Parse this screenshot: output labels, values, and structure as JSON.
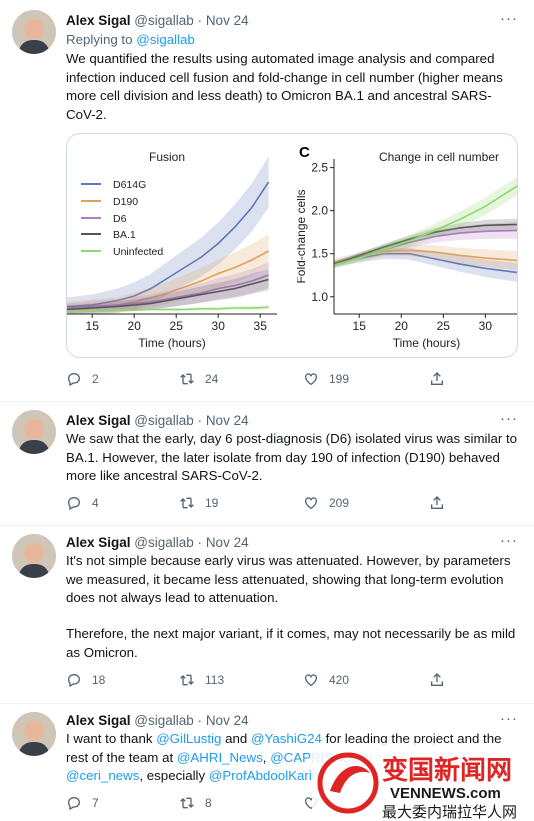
{
  "tweets": [
    {
      "name": "Alex Sigal",
      "handle": "@sigallab",
      "separator": "·",
      "date": "Nov 24",
      "replying_prefix": "Replying to ",
      "replying_handle": "@sigallab",
      "text": "We quantified the results using automated image analysis and compared infection induced cell fusion and fold-change in cell number (higher means more cell division and less death) to Omicron BA.1 and ancestral SARS-CoV-2.",
      "replies": "2",
      "retweets": "24",
      "likes": "199"
    },
    {
      "name": "Alex Sigal",
      "handle": "@sigallab",
      "separator": "·",
      "date": "Nov 24",
      "text": "We saw that the early, day 6 post-diagnosis (D6) isolated virus was similar to BA.1. However, the later isolate from day 190 of infection (D190) behaved more like ancestral SARS-CoV-2.",
      "replies": "4",
      "retweets": "19",
      "likes": "209"
    },
    {
      "name": "Alex Sigal",
      "handle": "@sigallab",
      "separator": "·",
      "date": "Nov 24",
      "text_p1": "It's not simple because early virus was attenuated. However, by parameters we measured, it became less attenuated, showing that long-term evolution does not always lead to attenuation.",
      "text_p2": "Therefore, the next major variant, if it comes, may not necessarily be as mild as Omicron.",
      "replies": "18",
      "retweets": "113",
      "likes": "420"
    },
    {
      "name": "Alex Sigal",
      "handle": "@sigallab",
      "separator": "·",
      "date": "Nov 24",
      "t_a": "I want to thank ",
      "m1": "@GilLustig",
      "t_b": " and ",
      "m2": "@YashiG24",
      "t_c": " for leading the project and the rest of the team at ",
      "m3": "@AHRI_News",
      "t_d": ", ",
      "m4": "@CAPRISAOffici",
      "t_e": " ",
      "m5": "@ceri_news",
      "t_f": ", especially ",
      "m6": "@ProfAbdoolKarim",
      "replies": "7",
      "retweets": "8",
      "likes": ""
    }
  ],
  "colors": {
    "D614G": "#5f78b8",
    "D190": "#e0a05a",
    "D6": "#b07cc6",
    "BA.1": "#555555",
    "Uninfected": "#8fd86b",
    "link": "#1d9bf0",
    "watermark_red": "#e02424"
  },
  "watermark": {
    "cn_name": "变国新闻网",
    "domain": "VENNEWS.com",
    "slogan": "最大委内瑞拉华人网"
  },
  "chart_data": [
    {
      "type": "line",
      "title": "Fusion",
      "xlabel": "Time (hours)",
      "ylabel": "",
      "x_ticks": [
        15,
        20,
        25,
        30,
        35
      ],
      "xlim": [
        12,
        37
      ],
      "ylim": [
        0,
        1
      ],
      "y_ticks_visible": false,
      "legend": "top-left",
      "series": [
        {
          "name": "D614G",
          "x": [
            12,
            15,
            18,
            20,
            22,
            24,
            26,
            28,
            30,
            32,
            34,
            36
          ],
          "values": [
            0.05,
            0.06,
            0.09,
            0.12,
            0.17,
            0.24,
            0.31,
            0.38,
            0.47,
            0.58,
            0.71,
            0.88
          ]
        },
        {
          "name": "D190",
          "x": [
            12,
            15,
            18,
            20,
            22,
            24,
            26,
            28,
            30,
            32,
            34,
            36
          ],
          "values": [
            0.04,
            0.05,
            0.06,
            0.08,
            0.11,
            0.14,
            0.18,
            0.22,
            0.27,
            0.31,
            0.36,
            0.42
          ]
        },
        {
          "name": "D6",
          "x": [
            12,
            15,
            18,
            20,
            22,
            24,
            26,
            28,
            30,
            32,
            34,
            36
          ],
          "values": [
            0.04,
            0.05,
            0.06,
            0.07,
            0.08,
            0.1,
            0.12,
            0.14,
            0.17,
            0.19,
            0.22,
            0.26
          ]
        },
        {
          "name": "BA.1",
          "x": [
            12,
            15,
            18,
            20,
            22,
            24,
            26,
            28,
            30,
            32,
            34,
            36
          ],
          "values": [
            0.03,
            0.04,
            0.05,
            0.06,
            0.07,
            0.09,
            0.11,
            0.13,
            0.15,
            0.17,
            0.2,
            0.23
          ]
        },
        {
          "name": "Uninfected",
          "x": [
            12,
            15,
            18,
            20,
            22,
            24,
            26,
            28,
            30,
            32,
            34,
            36
          ],
          "values": [
            0.02,
            0.02,
            0.025,
            0.025,
            0.03,
            0.03,
            0.03,
            0.035,
            0.035,
            0.04,
            0.04,
            0.045
          ]
        }
      ]
    },
    {
      "type": "line",
      "panel_label": "C",
      "title": "Change in cell number",
      "xlabel": "Time (hours)",
      "ylabel": "Fold-change cells",
      "x_ticks": [
        15,
        20,
        25,
        30
      ],
      "y_ticks": [
        1.0,
        1.5,
        2.0,
        2.5
      ],
      "xlim": [
        12,
        34
      ],
      "ylim": [
        0.8,
        2.6
      ],
      "series": [
        {
          "name": "D614G",
          "x": [
            12,
            15,
            18,
            21,
            24,
            27,
            30,
            34
          ],
          "values": [
            1.38,
            1.45,
            1.5,
            1.5,
            1.44,
            1.38,
            1.33,
            1.28
          ]
        },
        {
          "name": "D190",
          "x": [
            12,
            15,
            18,
            21,
            24,
            27,
            30,
            34
          ],
          "values": [
            1.4,
            1.47,
            1.53,
            1.54,
            1.52,
            1.48,
            1.45,
            1.42
          ]
        },
        {
          "name": "D6",
          "x": [
            12,
            15,
            18,
            21,
            24,
            27,
            30,
            34
          ],
          "values": [
            1.37,
            1.46,
            1.55,
            1.63,
            1.7,
            1.74,
            1.76,
            1.77
          ]
        },
        {
          "name": "BA.1",
          "x": [
            12,
            15,
            18,
            21,
            24,
            27,
            30,
            34
          ],
          "values": [
            1.38,
            1.48,
            1.58,
            1.67,
            1.75,
            1.8,
            1.83,
            1.84
          ]
        },
        {
          "name": "Uninfected",
          "x": [
            12,
            15,
            18,
            21,
            24,
            27,
            30,
            34
          ],
          "values": [
            1.37,
            1.45,
            1.55,
            1.65,
            1.77,
            1.9,
            2.05,
            2.3
          ]
        }
      ]
    }
  ]
}
